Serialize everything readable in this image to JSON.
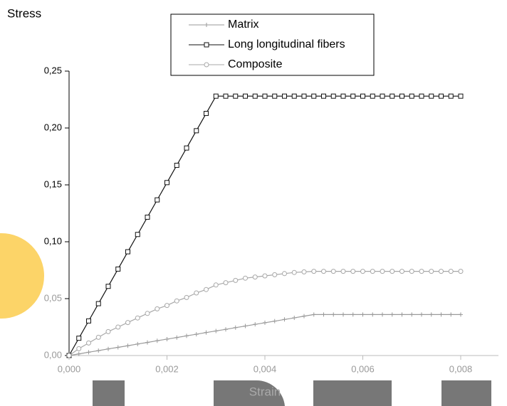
{
  "chart_data": {
    "type": "line",
    "y_label": "Stress",
    "x_label": "Strain",
    "x": [
      0,
      0.0002,
      0.0004,
      0.0006,
      0.0008,
      0.001,
      0.0012,
      0.0014,
      0.0016,
      0.0018,
      0.002,
      0.0022,
      0.0024,
      0.0026,
      0.0028,
      0.003,
      0.0032,
      0.0034,
      0.0036,
      0.0038,
      0.004,
      0.0042,
      0.0044,
      0.0046,
      0.0048,
      0.005,
      0.0052,
      0.0054,
      0.0056,
      0.0058,
      0.006,
      0.0062,
      0.0064,
      0.0066,
      0.0068,
      0.007,
      0.0072,
      0.0074,
      0.0076,
      0.0078,
      0.008
    ],
    "series": [
      {
        "name": "Matrix",
        "color": "#9a9a9a",
        "marker": "plus",
        "values": [
          0,
          0.0014,
          0.0029,
          0.0043,
          0.0058,
          0.0072,
          0.0086,
          0.0101,
          0.0115,
          0.013,
          0.0144,
          0.0158,
          0.0173,
          0.0187,
          0.0202,
          0.0216,
          0.023,
          0.0245,
          0.0259,
          0.0274,
          0.0288,
          0.0302,
          0.0317,
          0.0331,
          0.0346,
          0.036,
          0.036,
          0.036,
          0.036,
          0.036,
          0.036,
          0.036,
          0.036,
          0.036,
          0.036,
          0.036,
          0.036,
          0.036,
          0.036,
          0.036,
          0.036
        ]
      },
      {
        "name": "Long longitudinal fibers",
        "color": "#111111",
        "marker": "square",
        "values": [
          0,
          0.0152,
          0.0304,
          0.0456,
          0.0608,
          0.076,
          0.0912,
          0.1064,
          0.1216,
          0.1368,
          0.152,
          0.1672,
          0.1824,
          0.1976,
          0.2128,
          0.228,
          0.228,
          0.228,
          0.228,
          0.228,
          0.228,
          0.228,
          0.228,
          0.228,
          0.228,
          0.228,
          0.228,
          0.228,
          0.228,
          0.228,
          0.228,
          0.228,
          0.228,
          0.228,
          0.228,
          0.228,
          0.228,
          0.228,
          0.228,
          0.228,
          0.228
        ]
      },
      {
        "name": "Composite",
        "color": "#a8a8a8",
        "marker": "circle",
        "values": [
          0,
          0.006,
          0.011,
          0.016,
          0.021,
          0.025,
          0.029,
          0.033,
          0.037,
          0.041,
          0.044,
          0.048,
          0.051,
          0.055,
          0.058,
          0.062,
          0.064,
          0.066,
          0.068,
          0.069,
          0.07,
          0.071,
          0.072,
          0.073,
          0.0735,
          0.074,
          0.074,
          0.074,
          0.074,
          0.074,
          0.074,
          0.074,
          0.074,
          0.074,
          0.074,
          0.074,
          0.074,
          0.074,
          0.074,
          0.074,
          0.074
        ]
      }
    ],
    "xlim": [
      0,
      0.008
    ],
    "xticks": [
      {
        "value": 0,
        "label": "0,000"
      },
      {
        "value": 0.002,
        "label": "0,002"
      },
      {
        "value": 0.004,
        "label": "0,004"
      },
      {
        "value": 0.006,
        "label": "0,006"
      },
      {
        "value": 0.008,
        "label": "0,008"
      }
    ],
    "ylim": [
      0,
      0.25
    ],
    "yticks": [
      {
        "value": 0,
        "label": "0,00"
      },
      {
        "value": 0.05,
        "label": "0,05"
      },
      {
        "value": 0.1,
        "label": "0,10"
      },
      {
        "value": 0.15,
        "label": "0,15"
      },
      {
        "value": 0.2,
        "label": "0,20"
      },
      {
        "value": 0.25,
        "label": "0,25"
      }
    ],
    "legend": "upper center",
    "grid": false
  }
}
